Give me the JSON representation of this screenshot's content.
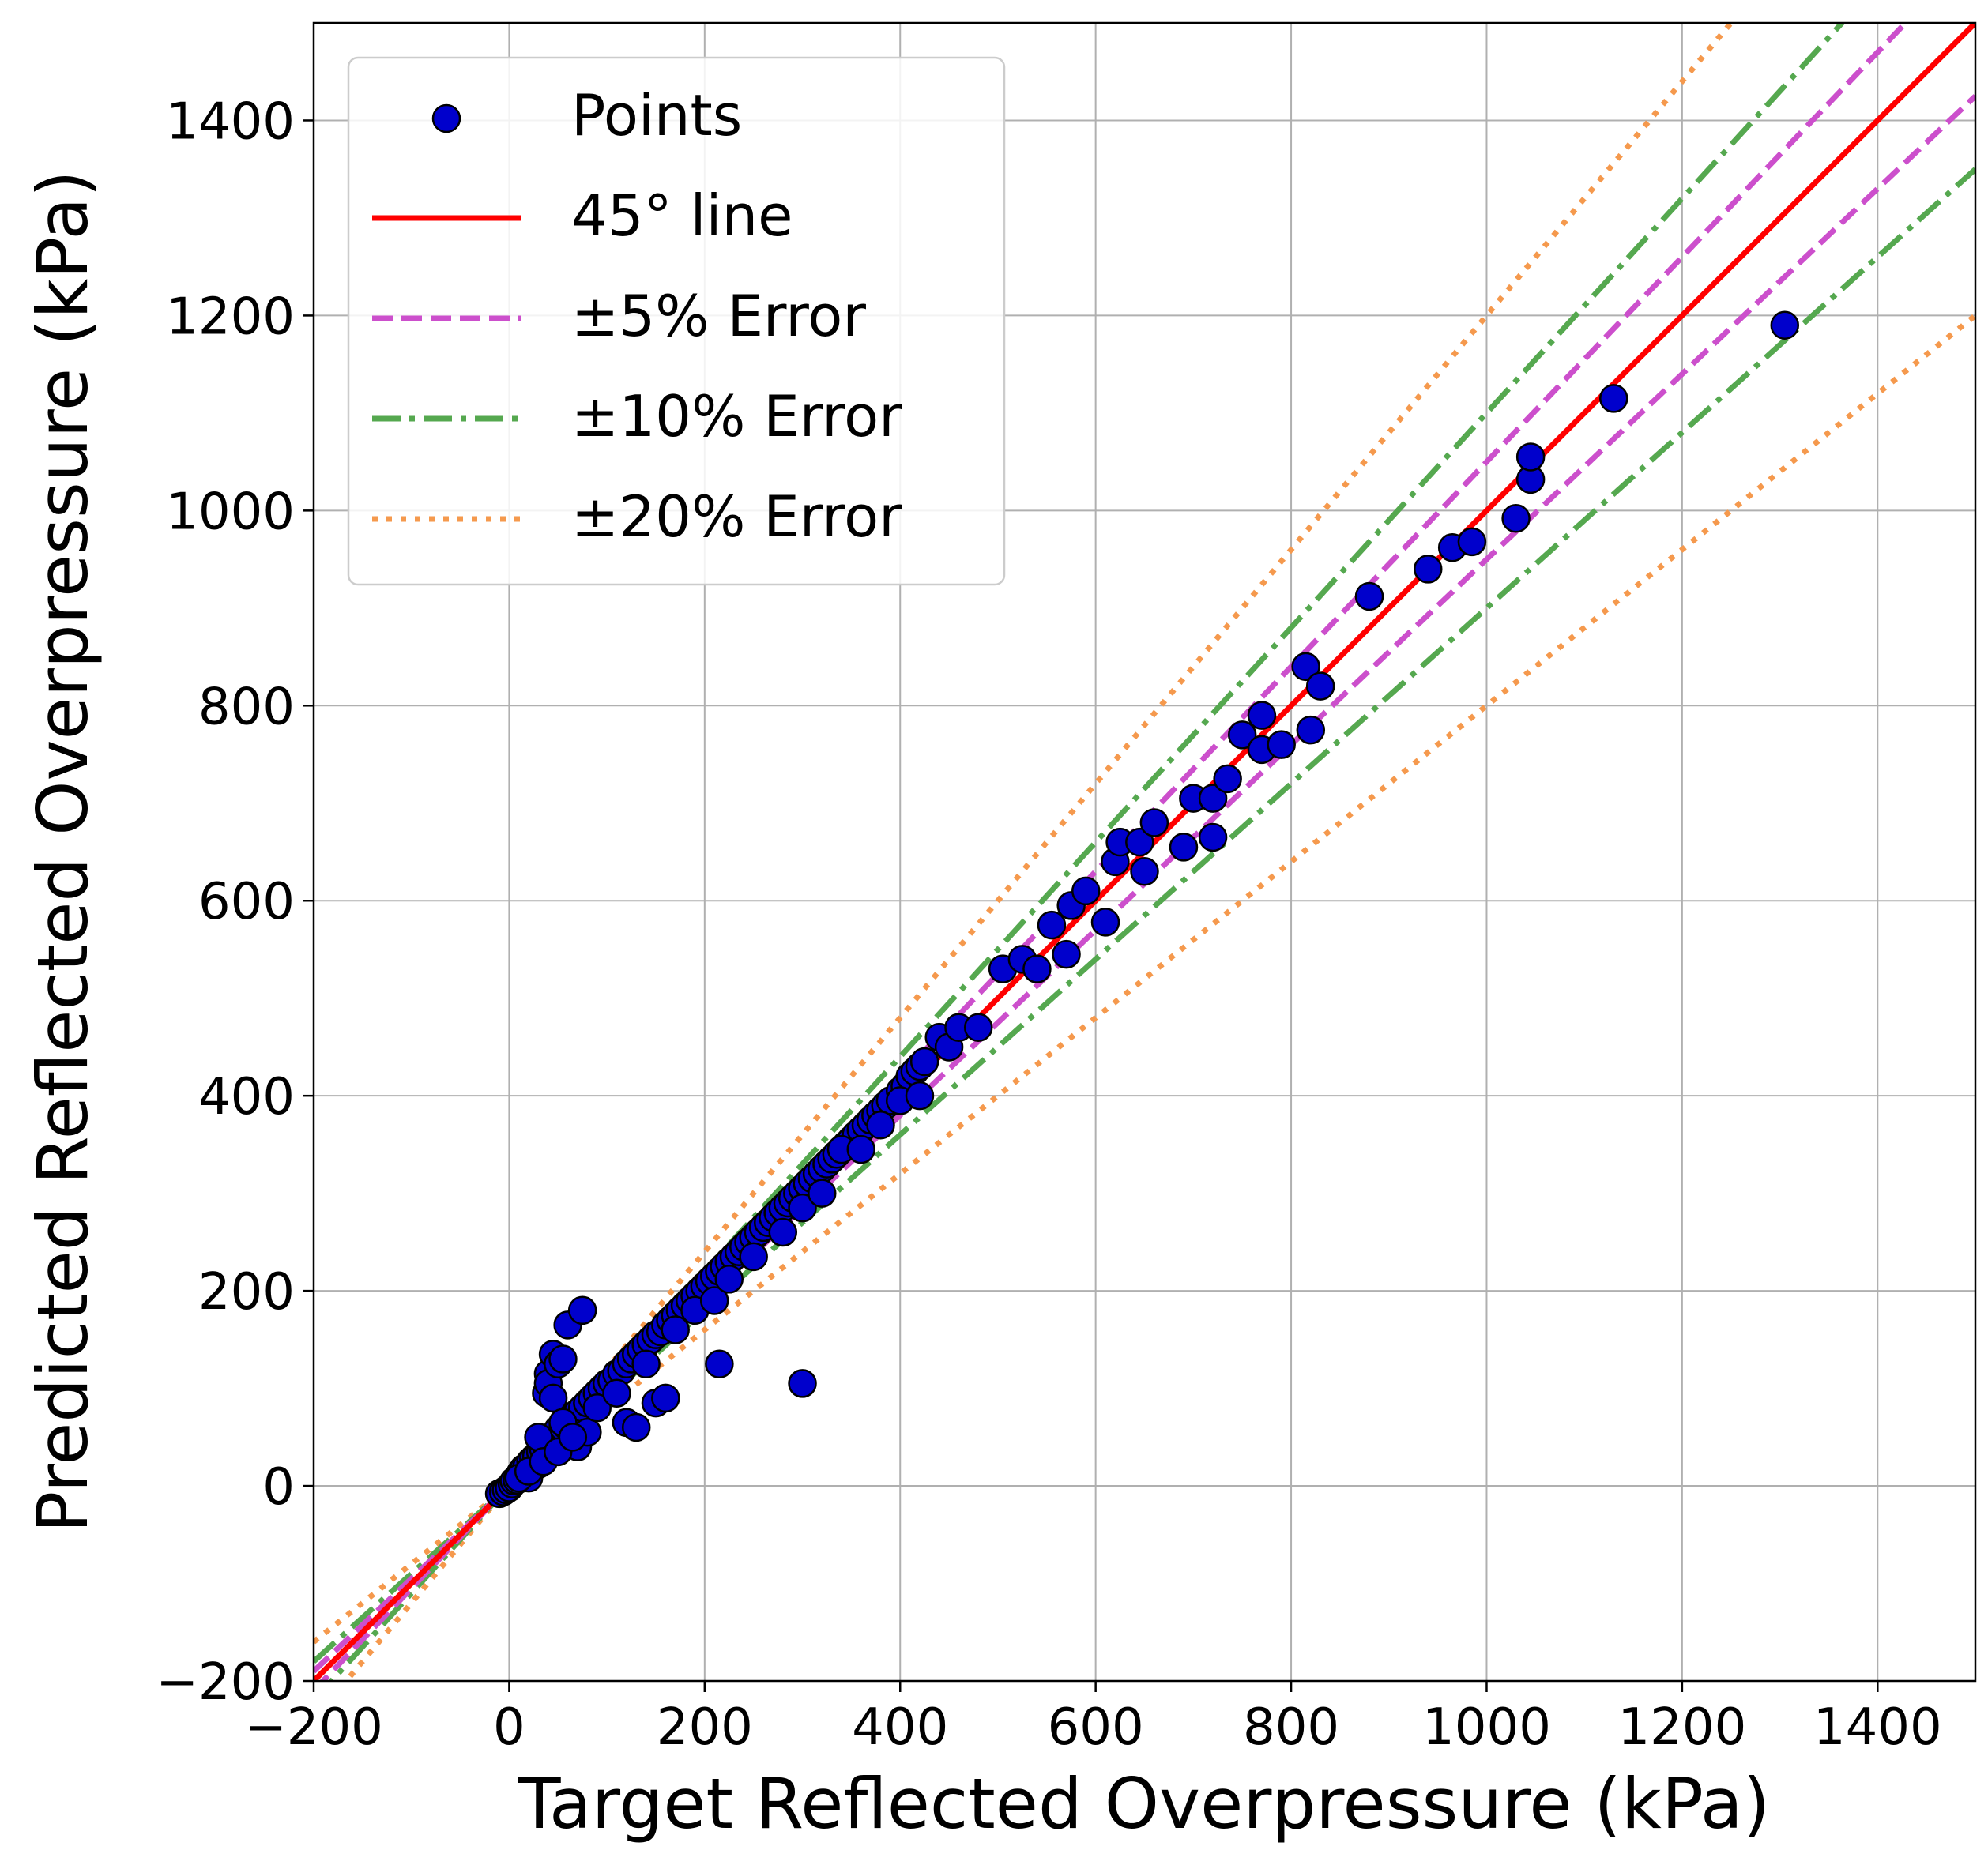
{
  "chart_data": {
    "type": "scatter",
    "xlabel": "Target Reflected Overpressure (kPa)",
    "ylabel": "Predicted Reflected Overpressure (kPa)",
    "xlim": [
      -200,
      1500
    ],
    "ylim": [
      -200,
      1500
    ],
    "xticks": [
      "−200",
      "0",
      "200",
      "400",
      "600",
      "800",
      "1000",
      "1200",
      "1400"
    ],
    "xtick_values": [
      -200,
      0,
      200,
      400,
      600,
      800,
      1000,
      1200,
      1400
    ],
    "yticks": [
      "−200",
      "0",
      "200",
      "400",
      "600",
      "800",
      "1000",
      "1200",
      "1400"
    ],
    "ytick_values": [
      -200,
      0,
      200,
      400,
      600,
      800,
      1000,
      1200,
      1400
    ],
    "grid": true,
    "legend_position": "top-left",
    "legend": [
      {
        "label": "Points",
        "style": "marker",
        "color": "#0000cc"
      },
      {
        "label": "45° line",
        "style": "solid",
        "color": "#ff0000"
      },
      {
        "label": "±5% Error",
        "style": "dashed",
        "color": "#cc4fcc"
      },
      {
        "label": "±10% Error",
        "style": "dashdot",
        "color": "#55a84f"
      },
      {
        "label": "±20% Error",
        "style": "dotted",
        "color": "#f5994d"
      }
    ],
    "reference_lines": [
      {
        "name": "45° line",
        "factors": [
          1.0
        ],
        "color": "#ff0000",
        "dash": "none"
      },
      {
        "name": "±5% Error",
        "factors": [
          1.05,
          0.95
        ],
        "color": "#cc4fcc",
        "dash": "dashed"
      },
      {
        "name": "±10% Error",
        "factors": [
          1.1,
          0.9
        ],
        "color": "#55a84f",
        "dash": "dashdot"
      },
      {
        "name": "±20% Error",
        "factors": [
          1.2,
          0.8
        ],
        "color": "#f5994d",
        "dash": "dotted"
      }
    ],
    "series": [
      {
        "name": "Points",
        "marker_color": "#0000cc",
        "edge_color": "#000000",
        "points": [
          [
            -10,
            -8
          ],
          [
            -6,
            -6
          ],
          [
            -3,
            -4
          ],
          [
            0,
            -2
          ],
          [
            3,
            2
          ],
          [
            5,
            5
          ],
          [
            8,
            6
          ],
          [
            10,
            10
          ],
          [
            12,
            14
          ],
          [
            15,
            18
          ],
          [
            18,
            20
          ],
          [
            20,
            8
          ],
          [
            22,
            25
          ],
          [
            25,
            28
          ],
          [
            28,
            30
          ],
          [
            30,
            22
          ],
          [
            32,
            35
          ],
          [
            35,
            38
          ],
          [
            38,
            40
          ],
          [
            40,
            45
          ],
          [
            42,
            50
          ],
          [
            45,
            48
          ],
          [
            48,
            55
          ],
          [
            50,
            58
          ],
          [
            55,
            60
          ],
          [
            58,
            62
          ],
          [
            60,
            65
          ],
          [
            65,
            70
          ],
          [
            70,
            75
          ],
          [
            75,
            80
          ],
          [
            80,
            85
          ],
          [
            85,
            90
          ],
          [
            90,
            95
          ],
          [
            95,
            100
          ],
          [
            100,
            105
          ],
          [
            105,
            108
          ],
          [
            110,
            115
          ],
          [
            115,
            118
          ],
          [
            120,
            125
          ],
          [
            125,
            130
          ],
          [
            130,
            135
          ],
          [
            135,
            140
          ],
          [
            140,
            145
          ],
          [
            145,
            150
          ],
          [
            150,
            155
          ],
          [
            155,
            158
          ],
          [
            160,
            165
          ],
          [
            165,
            170
          ],
          [
            170,
            175
          ],
          [
            175,
            180
          ],
          [
            180,
            185
          ],
          [
            185,
            190
          ],
          [
            190,
            195
          ],
          [
            195,
            200
          ],
          [
            200,
            205
          ],
          [
            205,
            210
          ],
          [
            210,
            215
          ],
          [
            215,
            220
          ],
          [
            220,
            225
          ],
          [
            225,
            230
          ],
          [
            230,
            235
          ],
          [
            235,
            240
          ],
          [
            240,
            245
          ],
          [
            245,
            250
          ],
          [
            250,
            255
          ],
          [
            255,
            260
          ],
          [
            260,
            265
          ],
          [
            265,
            270
          ],
          [
            270,
            275
          ],
          [
            275,
            280
          ],
          [
            280,
            285
          ],
          [
            285,
            290
          ],
          [
            290,
            295
          ],
          [
            295,
            300
          ],
          [
            300,
            305
          ],
          [
            305,
            310
          ],
          [
            310,
            315
          ],
          [
            315,
            320
          ],
          [
            320,
            325
          ],
          [
            325,
            330
          ],
          [
            330,
            335
          ],
          [
            335,
            340
          ],
          [
            340,
            345
          ],
          [
            345,
            350
          ],
          [
            350,
            355
          ],
          [
            355,
            360
          ],
          [
            360,
            365
          ],
          [
            365,
            370
          ],
          [
            370,
            375
          ],
          [
            375,
            380
          ],
          [
            380,
            385
          ],
          [
            385,
            390
          ],
          [
            390,
            395
          ],
          [
            400,
            405
          ],
          [
            405,
            410
          ],
          [
            410,
            420
          ],
          [
            415,
            425
          ],
          [
            420,
            430
          ],
          [
            425,
            435
          ],
          [
            40,
            115
          ],
          [
            38,
            95
          ],
          [
            40,
            105
          ],
          [
            45,
            135
          ],
          [
            50,
            125
          ],
          [
            55,
            130
          ],
          [
            60,
            165
          ],
          [
            75,
            180
          ],
          [
            45,
            90
          ],
          [
            55,
            65
          ],
          [
            70,
            40
          ],
          [
            80,
            55
          ],
          [
            120,
            65
          ],
          [
            130,
            60
          ],
          [
            150,
            85
          ],
          [
            160,
            90
          ],
          [
            215,
            125
          ],
          [
            300,
            105
          ],
          [
            10,
            8
          ],
          [
            20,
            15
          ],
          [
            30,
            50
          ],
          [
            35,
            25
          ],
          [
            50,
            35
          ],
          [
            65,
            50
          ],
          [
            90,
            80
          ],
          [
            110,
            95
          ],
          [
            140,
            125
          ],
          [
            170,
            160
          ],
          [
            190,
            180
          ],
          [
            210,
            190
          ],
          [
            225,
            212
          ],
          [
            250,
            235
          ],
          [
            280,
            260
          ],
          [
            300,
            285
          ],
          [
            320,
            300
          ],
          [
            340,
            345
          ],
          [
            360,
            345
          ],
          [
            380,
            370
          ],
          [
            400,
            395
          ],
          [
            420,
            400
          ],
          [
            440,
            460
          ],
          [
            450,
            450
          ],
          [
            460,
            470
          ],
          [
            480,
            470
          ],
          [
            505,
            530
          ],
          [
            525,
            540
          ],
          [
            540,
            530
          ],
          [
            555,
            575
          ],
          [
            570,
            545
          ],
          [
            575,
            595
          ],
          [
            590,
            610
          ],
          [
            610,
            578
          ],
          [
            620,
            640
          ],
          [
            625,
            660
          ],
          [
            645,
            660
          ],
          [
            650,
            630
          ],
          [
            660,
            680
          ],
          [
            690,
            655
          ],
          [
            700,
            705
          ],
          [
            720,
            705
          ],
          [
            720,
            665
          ],
          [
            735,
            725
          ],
          [
            750,
            770
          ],
          [
            770,
            790
          ],
          [
            770,
            755
          ],
          [
            790,
            760
          ],
          [
            815,
            840
          ],
          [
            820,
            775
          ],
          [
            830,
            820
          ],
          [
            880,
            912
          ],
          [
            940,
            940
          ],
          [
            965,
            962
          ],
          [
            985,
            968
          ],
          [
            1030,
            992
          ],
          [
            1045,
            1032
          ],
          [
            1045,
            1055
          ],
          [
            1130,
            1115
          ],
          [
            1305,
            1190
          ]
        ]
      }
    ]
  }
}
